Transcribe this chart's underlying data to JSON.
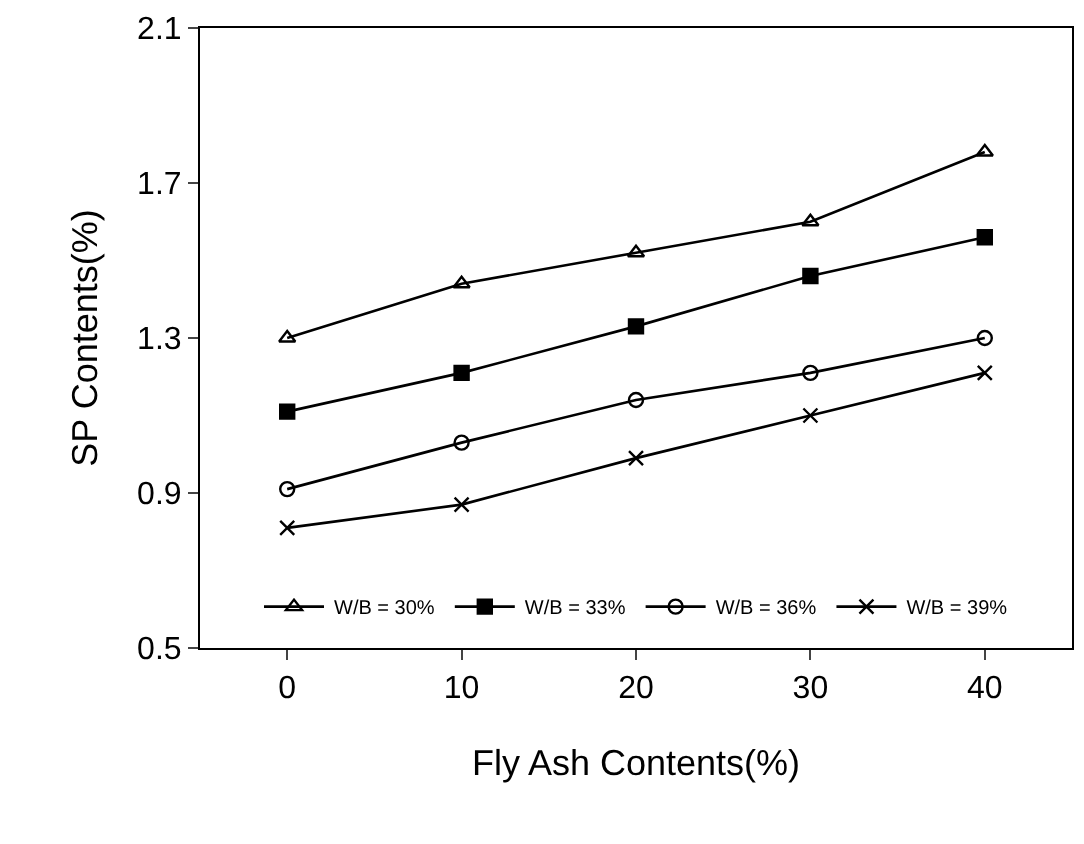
{
  "chart_data": {
    "type": "line",
    "xlabel": "Fly Ash Contents(%)",
    "ylabel": "SP Contents(%)",
    "x": [
      0,
      10,
      20,
      30,
      40
    ],
    "xlim": [
      -5,
      45
    ],
    "xticks": [
      0,
      10,
      20,
      30,
      40
    ],
    "ylim": [
      0.5,
      2.1
    ],
    "yticks": [
      0.5,
      0.9,
      1.3,
      1.7,
      2.1
    ],
    "grid": false,
    "legend": "bottom",
    "line_style": "solid",
    "series": [
      {
        "name": "W/B = 30%",
        "color": "#000000",
        "marker": "triangle",
        "values": [
          1.3,
          1.44,
          1.52,
          1.6,
          1.78
        ]
      },
      {
        "name": "W/B = 33%",
        "color": "#000000",
        "marker": "square",
        "values": [
          1.11,
          1.21,
          1.33,
          1.46,
          1.56
        ]
      },
      {
        "name": "W/B = 36%",
        "color": "#000000",
        "marker": "circle",
        "values": [
          0.91,
          1.03,
          1.14,
          1.21,
          1.3
        ]
      },
      {
        "name": "W/B = 39%",
        "color": "#000000",
        "marker": "cross",
        "values": [
          0.81,
          0.87,
          0.99,
          1.1,
          1.21
        ]
      }
    ]
  }
}
